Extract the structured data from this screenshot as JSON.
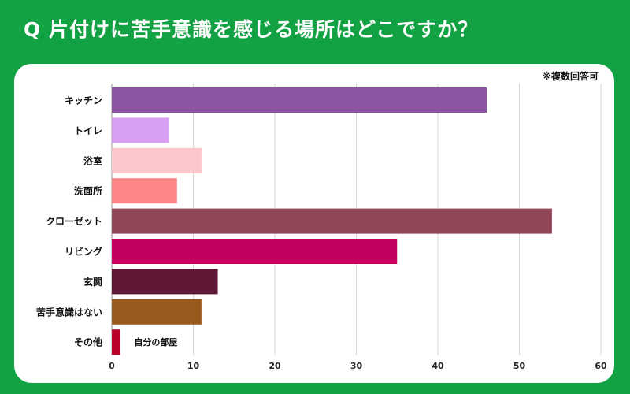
{
  "title": "Q 片付けに苦手意識を感じる場所はどこですか？",
  "note": "※複数回答可",
  "chart_data": {
    "type": "bar",
    "orientation": "horizontal",
    "title": "Q 片付けに苦手意識を感じる場所はどこですか？",
    "xlabel": "",
    "ylabel": "",
    "categories": [
      "キッチン",
      "トイレ",
      "浴室",
      "洗面所",
      "クローゼット",
      "リビング",
      "玄関",
      "苦手意識はない",
      "その他"
    ],
    "values": [
      46,
      7,
      11,
      8,
      54,
      35,
      13,
      11,
      1
    ],
    "colors": [
      "#8b55a3",
      "#d99ff3",
      "#fcc7cb",
      "#fe8587",
      "#944659",
      "#c1005f",
      "#5e1836",
      "#9a5a1e",
      "#b8002b"
    ],
    "annotations": [
      {
        "category": "その他",
        "text": "自分の部屋"
      }
    ],
    "xlim": [
      0,
      60
    ],
    "xticks": [
      0,
      10,
      20,
      30,
      40,
      50,
      60
    ],
    "grid": true
  }
}
